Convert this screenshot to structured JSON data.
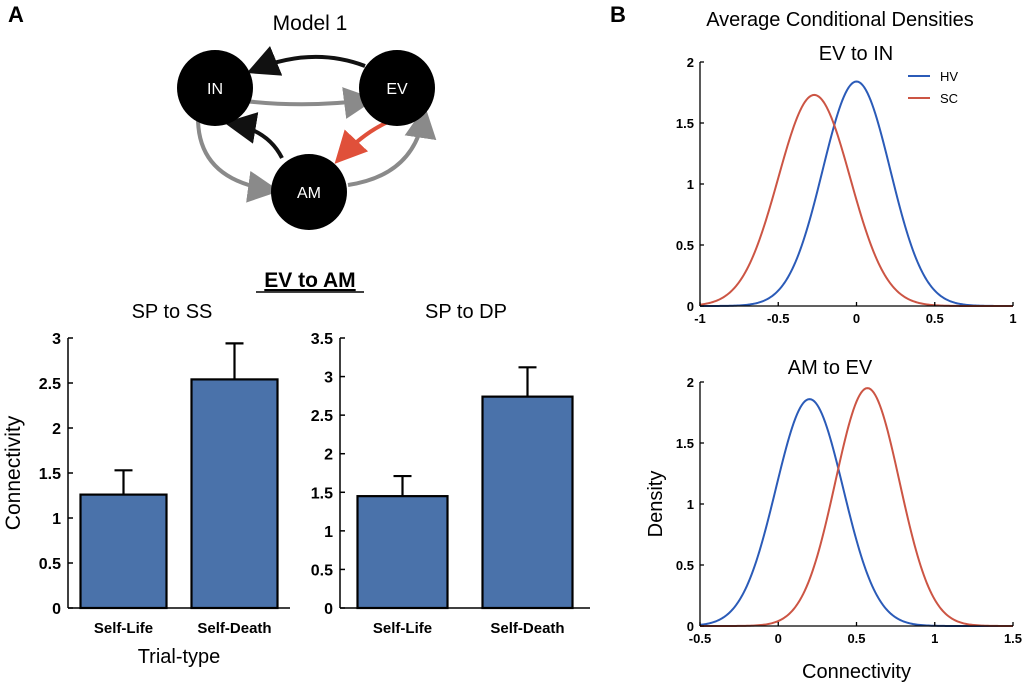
{
  "panel_a": {
    "label": "A",
    "model": {
      "title": "Model 1",
      "nodes": {
        "in": "IN",
        "ev": "EV",
        "am": "AM"
      },
      "colors": {
        "node": "#000000",
        "node_text": "#ffffff",
        "dark_arrow": "#111111",
        "gray_arrow": "#8a8a8a",
        "highlight_arrow": "#e0503a"
      }
    },
    "bar_section_title": "EV to AM"
  },
  "panel_b": {
    "label": "B"
  },
  "chart_data": [
    {
      "type": "bar",
      "title": "SP to SS",
      "categories": [
        "Self-Life",
        "Self-Death"
      ],
      "values": [
        1.26,
        2.54
      ],
      "errors": [
        0.27,
        0.4
      ],
      "xlabel": "Trial-type",
      "ylabel": "Connectivity",
      "ylim": [
        0,
        3
      ],
      "yticks": [
        "0",
        "0.5",
        "1",
        "1.5",
        "2",
        "2.5",
        "3"
      ],
      "bar_color": "#4a72aa"
    },
    {
      "type": "bar",
      "title": "SP to DP",
      "categories": [
        "Self-Life",
        "Self-Death"
      ],
      "values": [
        1.45,
        2.74
      ],
      "errors": [
        0.26,
        0.38
      ],
      "xlabel": "",
      "ylabel": "",
      "ylim": [
        0,
        3.5
      ],
      "yticks": [
        "0",
        "0.5",
        "1",
        "1.5",
        "2",
        "2.5",
        "3",
        "3.5"
      ],
      "bar_color": "#4a72aa"
    },
    {
      "type": "line",
      "suptitle": "Average Conditional Densities",
      "title": "EV to IN",
      "xlim": [
        -1,
        1
      ],
      "ylim": [
        0,
        2
      ],
      "xticks": [
        "-1",
        "-0.5",
        "0",
        "0.5",
        "1"
      ],
      "yticks": [
        "0",
        "0.5",
        "1",
        "1.5",
        "2"
      ],
      "legend": [
        "HV",
        "SC"
      ],
      "series": [
        {
          "name": "HV",
          "mean": 0.0,
          "sd": 0.216,
          "peak": 1.84,
          "color": "#2b5bb8"
        },
        {
          "name": "SC",
          "mean": -0.27,
          "sd": 0.23,
          "peak": 1.73,
          "color": "#cc5544"
        }
      ]
    },
    {
      "type": "line",
      "title": "AM to EV",
      "xlabel": "Connectivity",
      "ylabel": "Density",
      "xlim": [
        -0.5,
        1.5
      ],
      "ylim": [
        0,
        2
      ],
      "xticks": [
        "-0.5",
        "0",
        "0.5",
        "1",
        "1.5"
      ],
      "yticks": [
        "0",
        "0.5",
        "1",
        "1.5",
        "2"
      ],
      "series": [
        {
          "name": "HV",
          "mean": 0.2,
          "sd": 0.215,
          "peak": 1.86,
          "color": "#2b5bb8"
        },
        {
          "name": "SC",
          "mean": 0.57,
          "sd": 0.205,
          "peak": 1.95,
          "color": "#cc5544"
        }
      ]
    }
  ]
}
